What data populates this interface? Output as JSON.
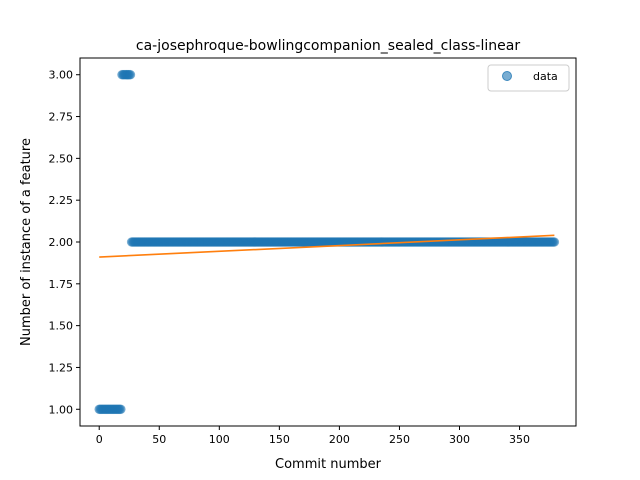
{
  "chart_data": {
    "type": "scatter",
    "title": "ca-josephroque-bowlingcompanion_sealed_class-linear",
    "xlabel": "Commit number",
    "ylabel": "Number of instance of a feature",
    "xlim": [
      -16,
      397
    ],
    "ylim": [
      0.9,
      3.1
    ],
    "xticks": [
      0,
      50,
      100,
      150,
      200,
      250,
      300,
      350
    ],
    "yticks": [
      1.0,
      1.25,
      1.5,
      1.75,
      2.0,
      2.25,
      2.5,
      2.75,
      3.0
    ],
    "ytick_labels": [
      "1.00",
      "1.25",
      "1.50",
      "1.75",
      "2.00",
      "2.25",
      "2.50",
      "2.75",
      "3.00"
    ],
    "legend": {
      "position": "top-right",
      "entries": [
        "data"
      ]
    },
    "series": [
      {
        "name": "data",
        "kind": "points",
        "color": "#1f77b4",
        "segments": [
          {
            "x_from": 0,
            "x_to": 18,
            "y": 1
          },
          {
            "x_from": 19,
            "x_to": 26,
            "y": 3
          },
          {
            "x_from": 27,
            "x_to": 379,
            "y": 2
          }
        ]
      },
      {
        "kind": "fit-line",
        "color": "#ff7f0e",
        "x": [
          0,
          379
        ],
        "y": [
          1.91,
          2.04
        ]
      }
    ],
    "grid": false
  }
}
